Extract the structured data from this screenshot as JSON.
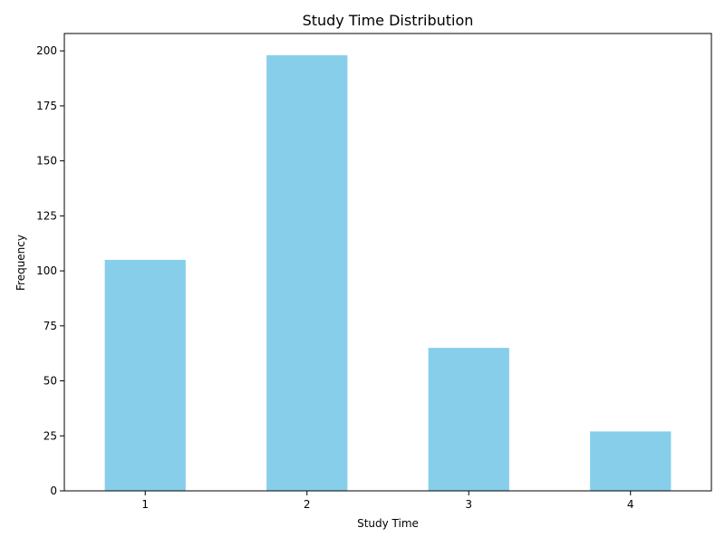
{
  "chart_data": {
    "type": "bar",
    "title": "Study Time Distribution",
    "xlabel": "Study Time",
    "ylabel": "Frequency",
    "categories": [
      "1",
      "2",
      "3",
      "4"
    ],
    "values": [
      105,
      198,
      65,
      27
    ],
    "ylim": [
      0,
      207.9
    ],
    "yticks": [
      0,
      25,
      50,
      75,
      100,
      125,
      150,
      175,
      200
    ],
    "grid": false,
    "legend": "none",
    "bar_color": "#87CEEB",
    "axis_color": "#000000"
  }
}
